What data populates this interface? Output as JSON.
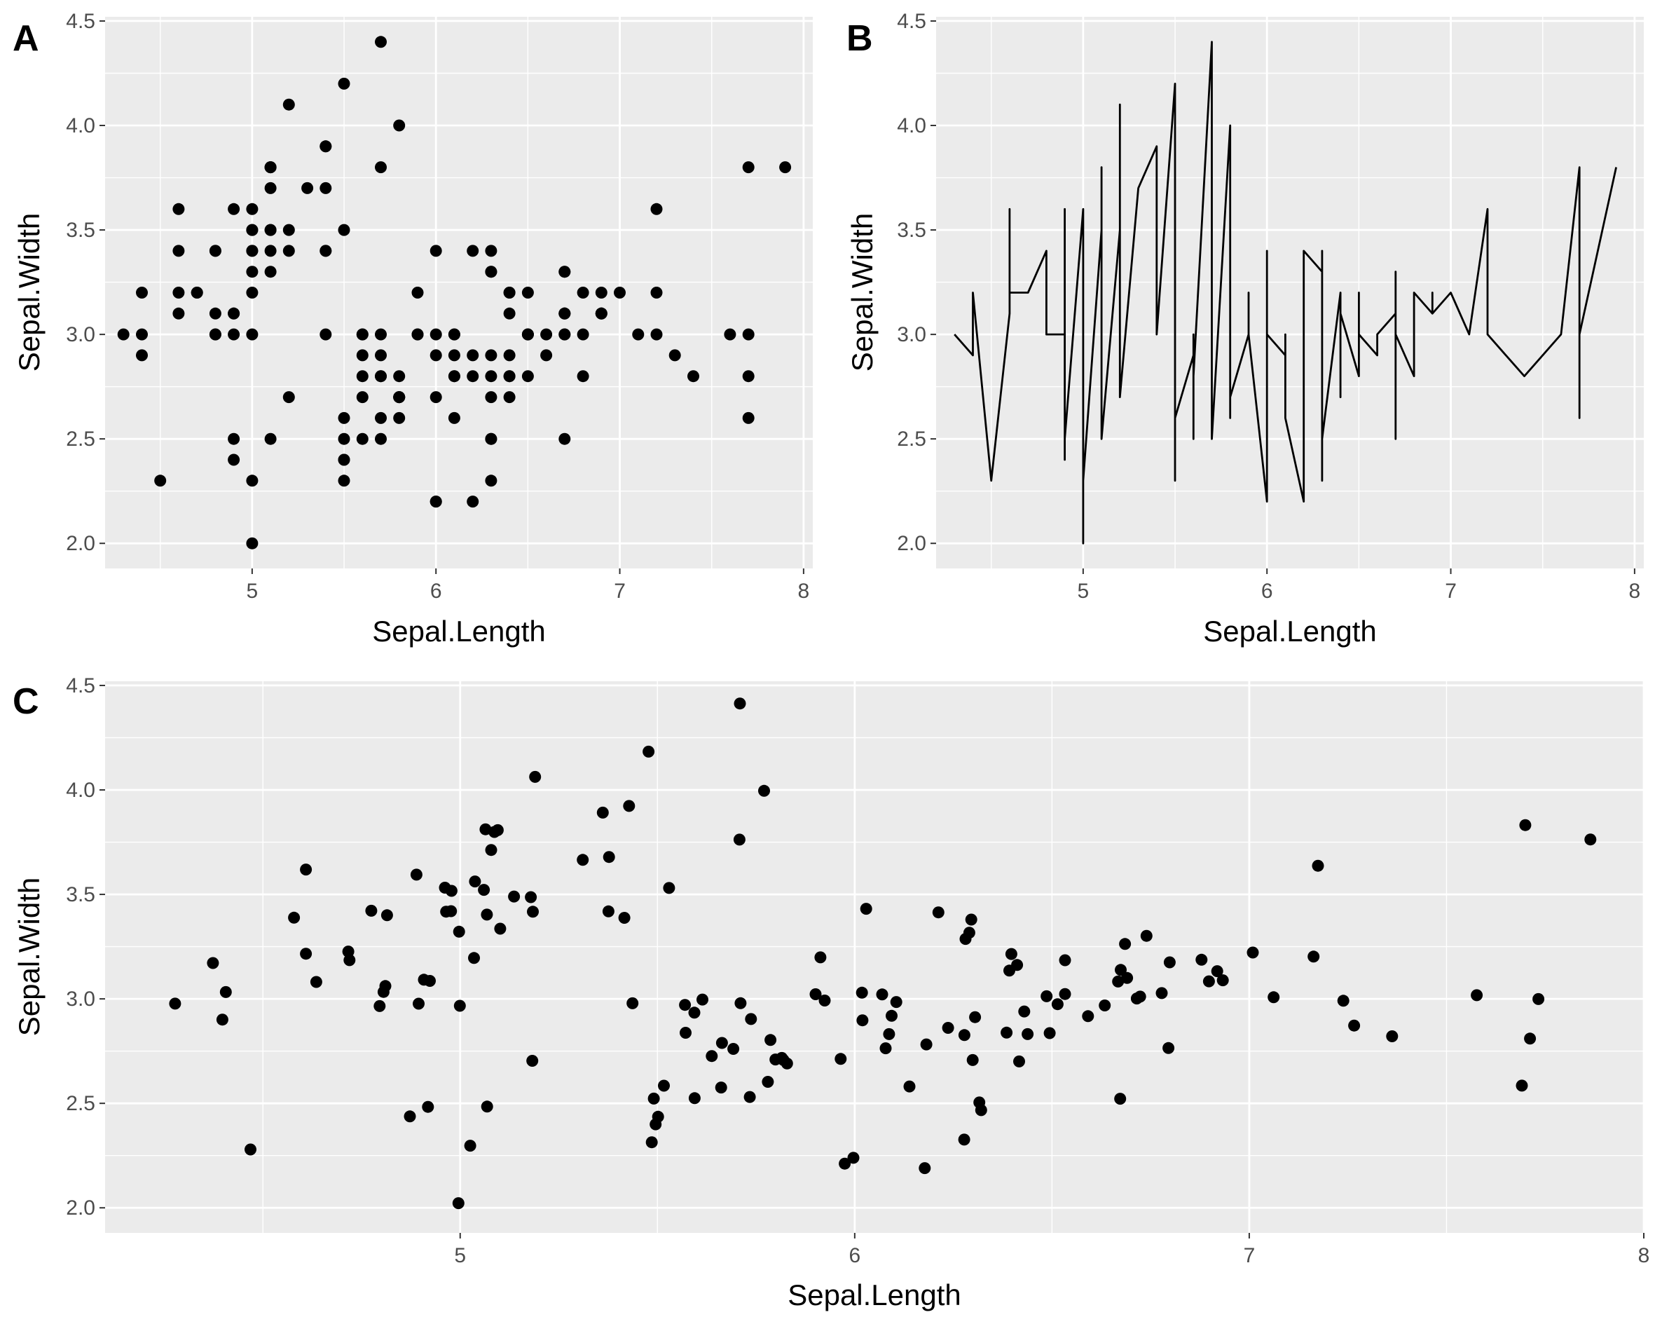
{
  "chart_data": [
    {
      "panel": "A",
      "type": "scatter",
      "xlabel": "Sepal.Length",
      "ylabel": "Sepal.Width",
      "xlim": [
        4.2,
        8.05
      ],
      "ylim": [
        1.88,
        4.52
      ],
      "xticks": [
        5,
        6,
        7,
        8
      ],
      "yticks": [
        2.0,
        2.5,
        3.0,
        3.5,
        4.0,
        4.5
      ],
      "ytick_labels": [
        "2.0",
        "2.5",
        "3.0",
        "3.5",
        "4.0",
        "4.5"
      ],
      "grid": true,
      "jitter": false
    },
    {
      "panel": "B",
      "type": "line",
      "xlabel": "Sepal.Length",
      "ylabel": "Sepal.Width",
      "xlim": [
        4.2,
        8.05
      ],
      "ylim": [
        1.88,
        4.52
      ],
      "xticks": [
        5,
        6,
        7,
        8
      ],
      "yticks": [
        2.0,
        2.5,
        3.0,
        3.5,
        4.0,
        4.5
      ],
      "ytick_labels": [
        "2.0",
        "2.5",
        "3.0",
        "3.5",
        "4.0",
        "4.5"
      ],
      "grid": true,
      "line_color": "#000000"
    },
    {
      "panel": "C",
      "type": "scatter",
      "xlabel": "Sepal.Length",
      "ylabel": "Sepal.Width",
      "xlim": [
        4.1,
        8.0
      ],
      "ylim": [
        1.88,
        4.52
      ],
      "xticks": [
        5,
        6,
        7,
        8
      ],
      "yticks": [
        2.0,
        2.5,
        3.0,
        3.5,
        4.0,
        4.5
      ],
      "ytick_labels": [
        "2.0",
        "2.5",
        "3.0",
        "3.5",
        "4.0",
        "4.5"
      ],
      "grid": true,
      "jitter": true
    }
  ],
  "iris_points": [
    [
      5.1,
      3.5
    ],
    [
      4.9,
      3.0
    ],
    [
      4.7,
      3.2
    ],
    [
      4.6,
      3.1
    ],
    [
      5.0,
      3.6
    ],
    [
      5.4,
      3.9
    ],
    [
      4.6,
      3.4
    ],
    [
      5.0,
      3.4
    ],
    [
      4.4,
      2.9
    ],
    [
      4.9,
      3.1
    ],
    [
      5.4,
      3.7
    ],
    [
      4.8,
      3.4
    ],
    [
      4.8,
      3.0
    ],
    [
      4.3,
      3.0
    ],
    [
      5.8,
      4.0
    ],
    [
      5.7,
      4.4
    ],
    [
      5.4,
      3.9
    ],
    [
      5.1,
      3.5
    ],
    [
      5.7,
      3.8
    ],
    [
      5.1,
      3.8
    ],
    [
      5.4,
      3.4
    ],
    [
      5.1,
      3.7
    ],
    [
      4.6,
      3.6
    ],
    [
      5.1,
      3.3
    ],
    [
      4.8,
      3.4
    ],
    [
      5.0,
      3.0
    ],
    [
      5.0,
      3.4
    ],
    [
      5.2,
      3.5
    ],
    [
      5.2,
      3.4
    ],
    [
      4.7,
      3.2
    ],
    [
      4.8,
      3.1
    ],
    [
      5.4,
      3.4
    ],
    [
      5.2,
      4.1
    ],
    [
      5.5,
      4.2
    ],
    [
      4.9,
      3.1
    ],
    [
      5.0,
      3.2
    ],
    [
      5.5,
      3.5
    ],
    [
      4.9,
      3.6
    ],
    [
      4.4,
      3.0
    ],
    [
      5.1,
      3.4
    ],
    [
      5.0,
      3.5
    ],
    [
      4.5,
      2.3
    ],
    [
      4.4,
      3.2
    ],
    [
      5.0,
      3.5
    ],
    [
      5.1,
      3.8
    ],
    [
      4.8,
      3.0
    ],
    [
      5.1,
      3.8
    ],
    [
      4.6,
      3.2
    ],
    [
      5.3,
      3.7
    ],
    [
      5.0,
      3.3
    ],
    [
      7.0,
      3.2
    ],
    [
      6.4,
      3.2
    ],
    [
      6.9,
      3.1
    ],
    [
      5.5,
      2.3
    ],
    [
      6.5,
      2.8
    ],
    [
      5.7,
      2.8
    ],
    [
      6.3,
      3.3
    ],
    [
      4.9,
      2.4
    ],
    [
      6.6,
      2.9
    ],
    [
      5.2,
      2.7
    ],
    [
      5.0,
      2.0
    ],
    [
      5.9,
      3.0
    ],
    [
      6.0,
      2.2
    ],
    [
      6.1,
      2.9
    ],
    [
      5.6,
      2.9
    ],
    [
      6.7,
      3.1
    ],
    [
      5.6,
      3.0
    ],
    [
      5.8,
      2.7
    ],
    [
      6.2,
      2.2
    ],
    [
      5.6,
      2.5
    ],
    [
      5.9,
      3.2
    ],
    [
      6.1,
      2.8
    ],
    [
      6.3,
      2.5
    ],
    [
      6.1,
      2.8
    ],
    [
      6.4,
      2.9
    ],
    [
      6.6,
      3.0
    ],
    [
      6.8,
      2.8
    ],
    [
      6.7,
      3.0
    ],
    [
      6.0,
      2.9
    ],
    [
      5.7,
      2.6
    ],
    [
      5.5,
      2.4
    ],
    [
      5.5,
      2.4
    ],
    [
      5.8,
      2.7
    ],
    [
      6.0,
      2.7
    ],
    [
      5.4,
      3.0
    ],
    [
      6.0,
      3.4
    ],
    [
      6.7,
      3.1
    ],
    [
      6.3,
      2.3
    ],
    [
      5.6,
      3.0
    ],
    [
      5.5,
      2.5
    ],
    [
      5.5,
      2.6
    ],
    [
      6.1,
      3.0
    ],
    [
      5.8,
      2.6
    ],
    [
      5.0,
      2.3
    ],
    [
      5.6,
      2.7
    ],
    [
      5.7,
      3.0
    ],
    [
      5.7,
      2.9
    ],
    [
      6.2,
      2.9
    ],
    [
      5.1,
      2.5
    ],
    [
      5.7,
      2.8
    ],
    [
      6.3,
      3.3
    ],
    [
      5.8,
      2.7
    ],
    [
      7.1,
      3.0
    ],
    [
      6.3,
      2.9
    ],
    [
      6.5,
      3.0
    ],
    [
      7.6,
      3.0
    ],
    [
      4.9,
      2.5
    ],
    [
      7.3,
      2.9
    ],
    [
      6.7,
      2.5
    ],
    [
      7.2,
      3.6
    ],
    [
      6.5,
      3.2
    ],
    [
      6.4,
      2.7
    ],
    [
      6.8,
      3.0
    ],
    [
      5.7,
      2.5
    ],
    [
      5.8,
      2.8
    ],
    [
      6.4,
      3.2
    ],
    [
      6.5,
      3.0
    ],
    [
      7.7,
      3.8
    ],
    [
      7.7,
      2.6
    ],
    [
      6.0,
      2.2
    ],
    [
      6.9,
      3.2
    ],
    [
      5.6,
      2.8
    ],
    [
      7.7,
      2.8
    ],
    [
      6.3,
      2.7
    ],
    [
      6.7,
      3.3
    ],
    [
      7.2,
      3.2
    ],
    [
      6.2,
      2.8
    ],
    [
      6.1,
      3.0
    ],
    [
      6.4,
      2.8
    ],
    [
      7.2,
      3.0
    ],
    [
      7.4,
      2.8
    ],
    [
      7.9,
      3.8
    ],
    [
      6.4,
      2.8
    ],
    [
      6.3,
      2.8
    ],
    [
      6.1,
      2.6
    ],
    [
      7.7,
      3.0
    ],
    [
      6.3,
      3.4
    ],
    [
      6.4,
      3.1
    ],
    [
      6.0,
      3.0
    ],
    [
      6.9,
      3.1
    ],
    [
      6.7,
      3.1
    ],
    [
      6.9,
      3.1
    ],
    [
      5.8,
      2.7
    ],
    [
      6.8,
      3.2
    ],
    [
      6.7,
      3.3
    ],
    [
      6.7,
      3.0
    ],
    [
      6.3,
      2.5
    ],
    [
      6.5,
      3.0
    ],
    [
      6.2,
      3.4
    ],
    [
      5.9,
      3.0
    ]
  ]
}
